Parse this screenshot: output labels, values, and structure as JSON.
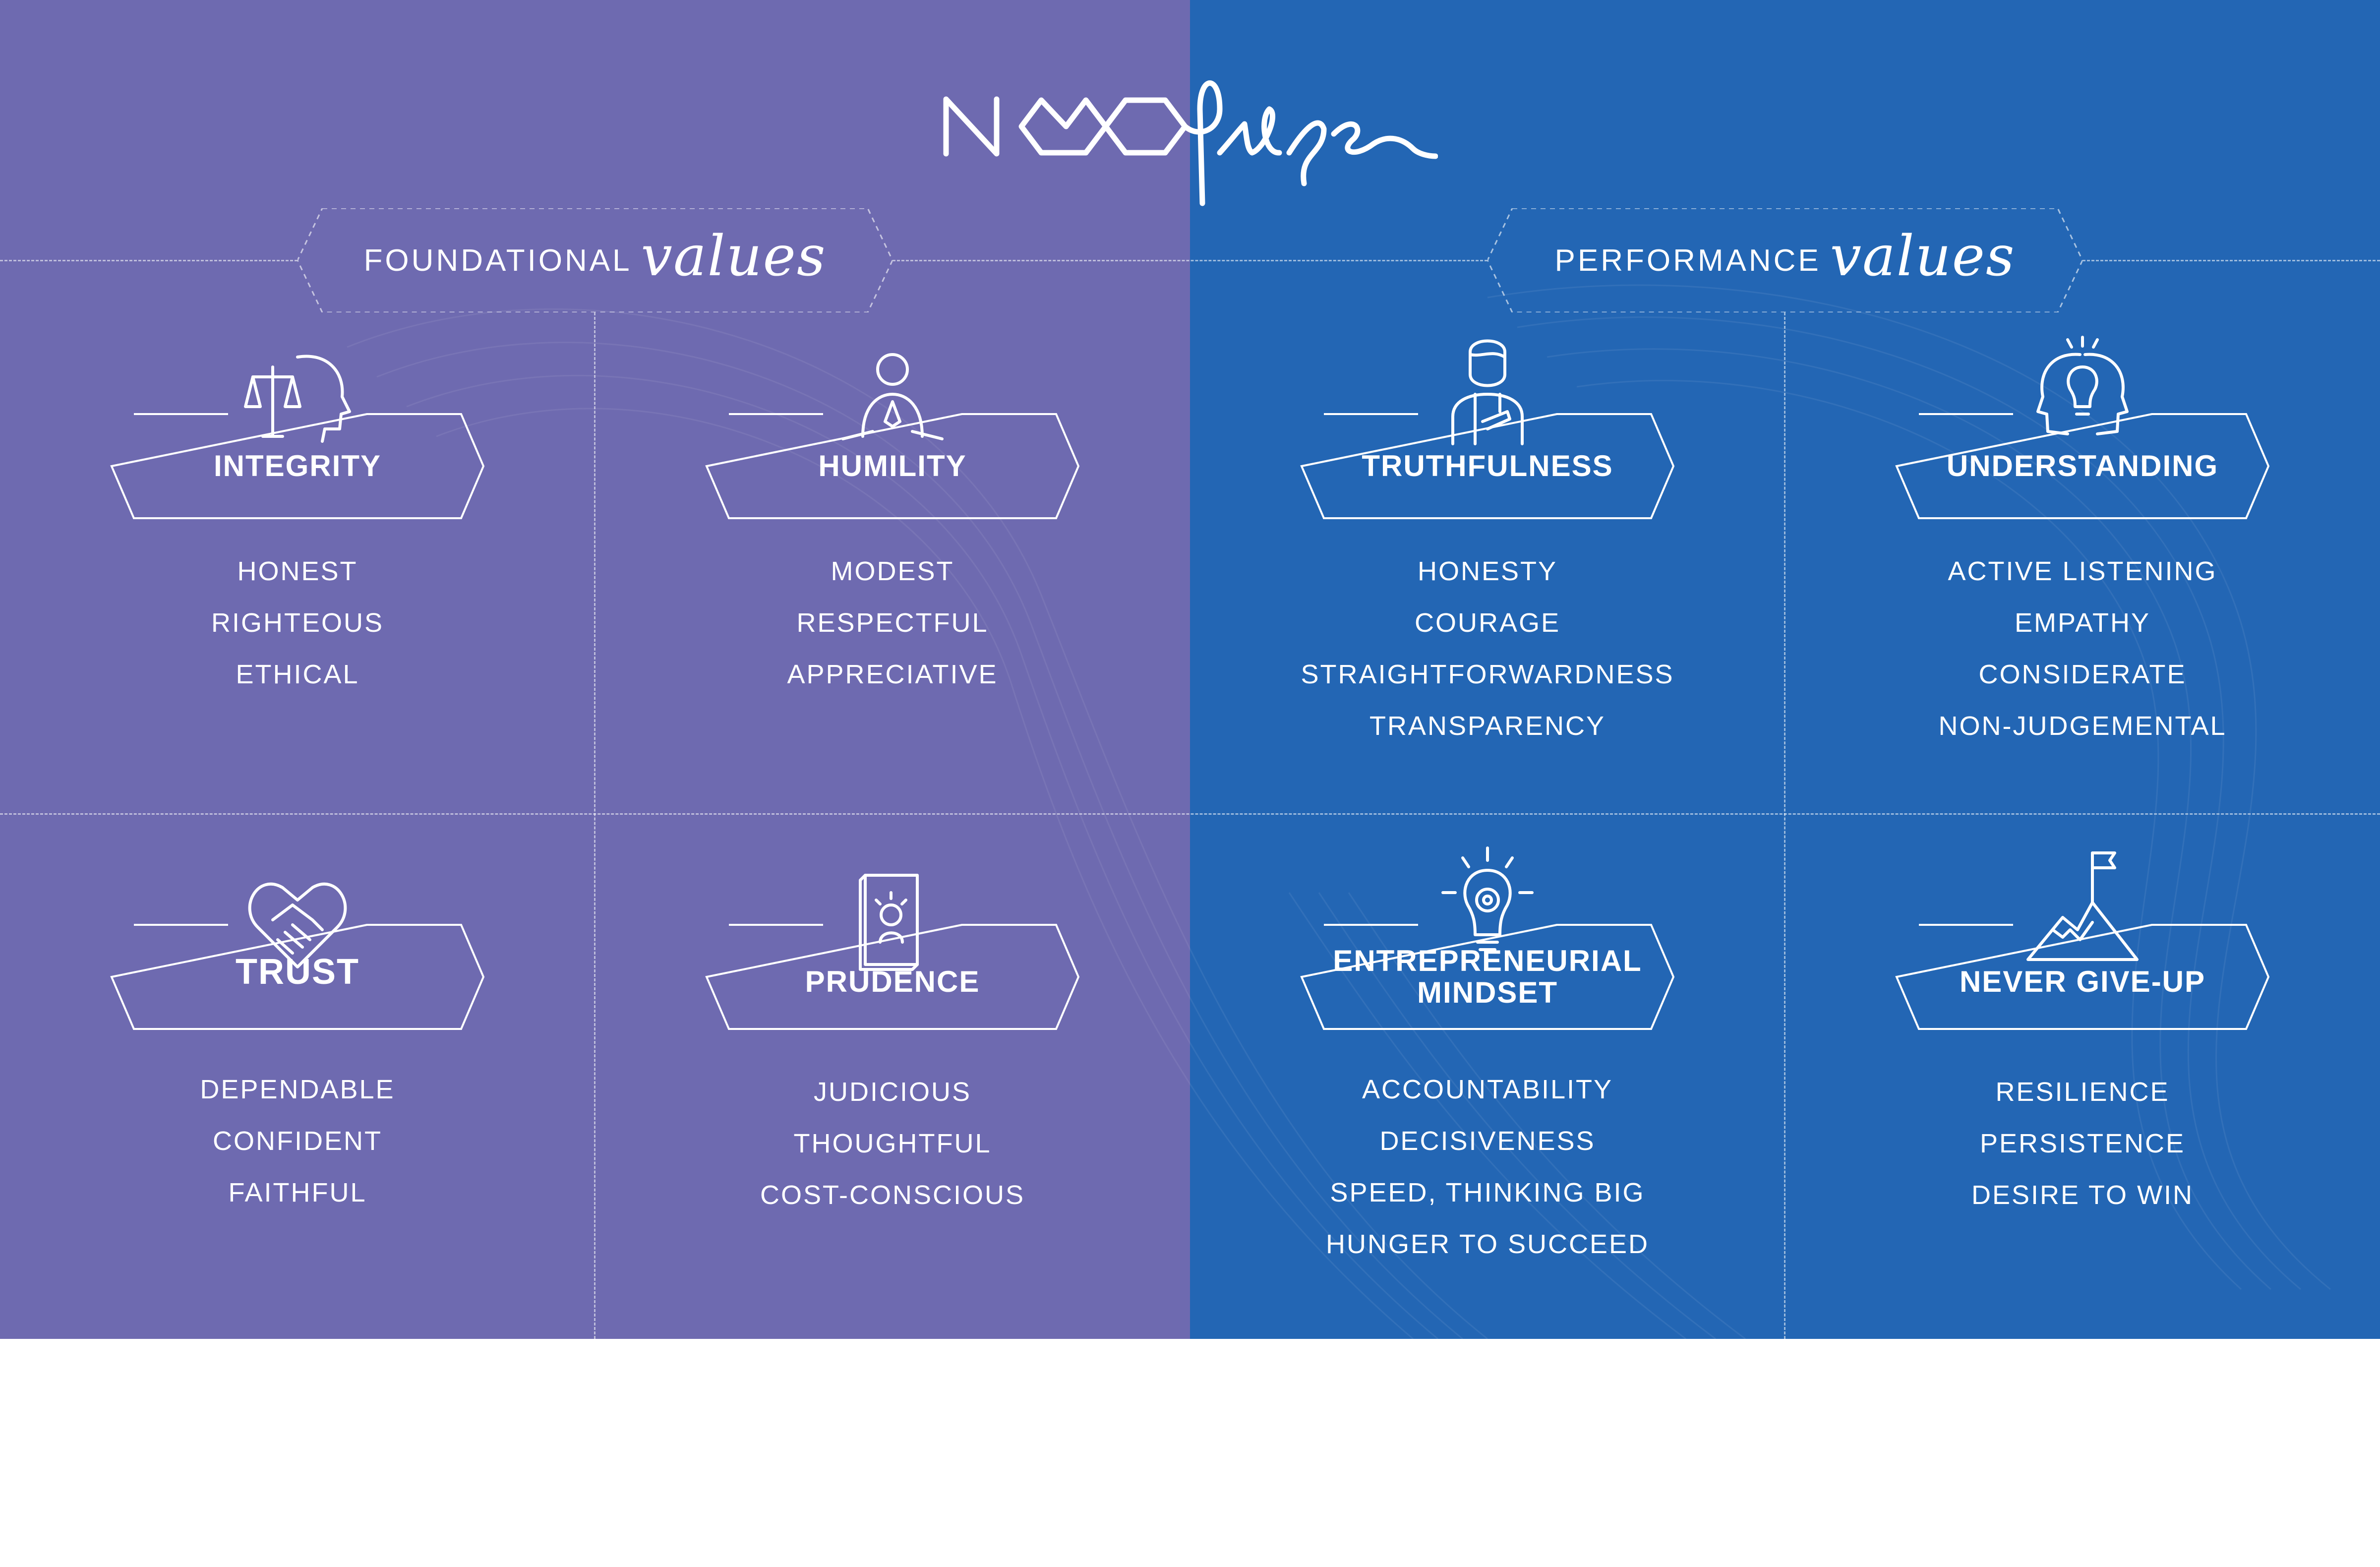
{
  "brand": {
    "logo_text": "neolifer"
  },
  "colors": {
    "left_background": "#6e6ab0",
    "right_background": "#2366b4",
    "text": "#ffffff"
  },
  "sections": {
    "foundational": {
      "word": "FOUNDATIONAL",
      "script": "values"
    },
    "performance": {
      "word": "PERFORMANCE",
      "script": "values"
    }
  },
  "cards": [
    {
      "title": "INTEGRITY",
      "icon": "scales-head-icon",
      "traits": [
        "HONEST",
        "RIGHTEOUS",
        "ETHICAL"
      ]
    },
    {
      "title": "HUMILITY",
      "icon": "praying-person-icon",
      "traits": [
        "MODEST",
        "RESPECTFUL",
        "APPRECIATIVE"
      ]
    },
    {
      "title": "TRUTHFULNESS",
      "icon": "person-hand-on-heart-icon",
      "traits": [
        "HONESTY",
        "COURAGE",
        "STRAIGHTFORWARDNESS",
        "TRANSPARENCY"
      ]
    },
    {
      "title": "UNDERSTANDING",
      "icon": "heads-lightbulb-icon",
      "traits": [
        "ACTIVE LISTENING",
        "EMPATHY",
        "CONSIDERATE",
        "NON-JUDGEMENTAL"
      ]
    },
    {
      "title": "TRUST",
      "icon": "handshake-heart-icon",
      "traits": [
        "DEPENDABLE",
        "CONFIDENT",
        "FAITHFUL"
      ]
    },
    {
      "title": "PRUDENCE",
      "icon": "book-icon",
      "traits": [
        "JUDICIOUS",
        "THOUGHTFUL",
        "COST-CONSCIOUS"
      ]
    },
    {
      "title": "ENTREPRENEURIAL MINDSET",
      "title_lines": [
        "ENTREPRENEURIAL",
        "MINDSET"
      ],
      "icon": "gear-lightbulb-icon",
      "traits": [
        "ACCOUNTABILITY",
        "DECISIVENESS",
        "SPEED, THINKING BIG",
        "HUNGER TO SUCCEED"
      ]
    },
    {
      "title": "NEVER GIVE-UP",
      "icon": "mountain-flag-icon",
      "traits": [
        "RESILIENCE",
        "PERSISTENCE",
        "DESIRE TO WIN"
      ]
    }
  ]
}
